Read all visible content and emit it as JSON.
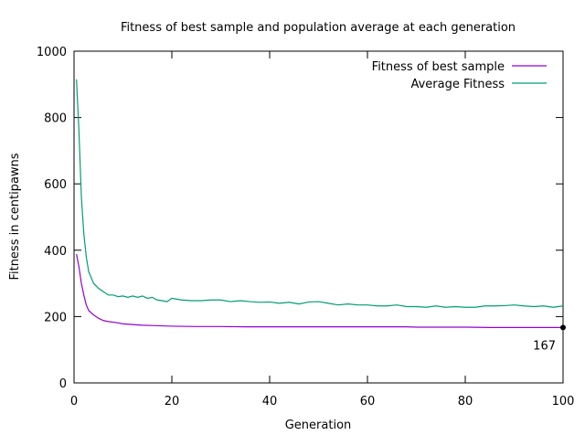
{
  "chart_data": {
    "type": "line",
    "title": "Fitness of best sample and population average at each generation",
    "xlabel": "Generation",
    "ylabel": "Fitness in centipawns",
    "xlim": [
      0,
      100
    ],
    "ylim": [
      0,
      1000
    ],
    "xticks": [
      0,
      20,
      40,
      60,
      80,
      100
    ],
    "yticks": [
      0,
      200,
      400,
      600,
      800,
      1000
    ],
    "grid": false,
    "legend_position": "top-right",
    "series": [
      {
        "name": "Fitness of best sample",
        "color": "#9400d3",
        "x": [
          0.5,
          1,
          1.5,
          2,
          2.5,
          3,
          4,
          5,
          6,
          7,
          8,
          9,
          10,
          12,
          14,
          16,
          18,
          20,
          25,
          30,
          35,
          40,
          45,
          50,
          55,
          60,
          65,
          68,
          70,
          75,
          80,
          85,
          90,
          95,
          100
        ],
        "values": [
          388,
          350,
          300,
          265,
          235,
          218,
          205,
          195,
          188,
          185,
          183,
          181,
          178,
          176,
          174,
          173,
          172,
          171,
          170,
          170,
          169,
          169,
          169,
          169,
          169,
          169,
          169,
          169,
          168,
          168,
          168,
          167,
          167,
          167,
          167
        ]
      },
      {
        "name": "Average Fitness",
        "color": "#009e73",
        "x": [
          0.5,
          1,
          1.5,
          2,
          2.5,
          3,
          4,
          5,
          6,
          7,
          8,
          9,
          10,
          11,
          12,
          13,
          14,
          15,
          16,
          17,
          18,
          19,
          20,
          22,
          24,
          26,
          28,
          30,
          32,
          34,
          36,
          38,
          40,
          42,
          44,
          46,
          48,
          50,
          52,
          54,
          56,
          58,
          60,
          62,
          64,
          66,
          68,
          70,
          72,
          74,
          76,
          78,
          80,
          82,
          84,
          86,
          88,
          90,
          92,
          94,
          96,
          98,
          100
        ],
        "values": [
          915,
          760,
          560,
          450,
          380,
          335,
          300,
          285,
          275,
          265,
          265,
          260,
          262,
          258,
          262,
          258,
          262,
          255,
          258,
          250,
          248,
          245,
          255,
          250,
          248,
          248,
          250,
          250,
          245,
          248,
          245,
          243,
          244,
          240,
          243,
          238,
          244,
          245,
          240,
          235,
          238,
          235,
          235,
          232,
          232,
          235,
          230,
          230,
          228,
          232,
          228,
          230,
          228,
          228,
          232,
          232,
          233,
          235,
          232,
          230,
          232,
          228,
          232
        ]
      }
    ],
    "annotations": [
      {
        "x": 100,
        "y": 167,
        "label": "167"
      }
    ]
  }
}
